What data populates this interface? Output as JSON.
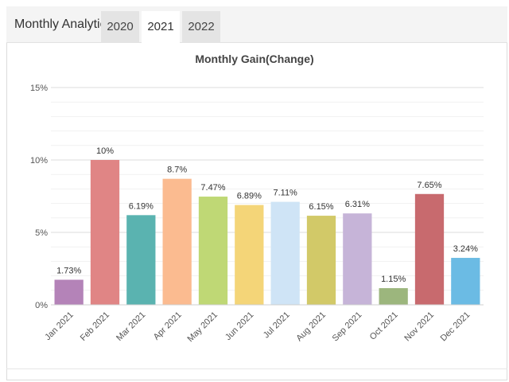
{
  "header": {
    "title": "Monthly Analytics",
    "tabs": [
      {
        "label": "2020",
        "active": false
      },
      {
        "label": "2021",
        "active": true
      },
      {
        "label": "2022",
        "active": false
      }
    ]
  },
  "chart_data": {
    "type": "bar",
    "title": "Monthly Gain(Change)",
    "xlabel": "",
    "ylabel": "",
    "ylim": [
      0,
      15
    ],
    "y_ticks": [
      0,
      5,
      10,
      15
    ],
    "y_tick_labels": [
      "0%",
      "5%",
      "10%",
      "15%"
    ],
    "grid": true,
    "categories": [
      "Jan 2021",
      "Feb 2021",
      "Mar 2021",
      "Apr 2021",
      "May 2021",
      "Jun 2021",
      "Jul 2021",
      "Aug 2021",
      "Sep 2021",
      "Oct 2021",
      "Nov 2021",
      "Dec 2021"
    ],
    "values": [
      1.73,
      10,
      6.19,
      8.7,
      7.47,
      6.89,
      7.11,
      6.15,
      6.31,
      1.15,
      7.65,
      3.24
    ],
    "data_labels": [
      "1.73%",
      "10%",
      "6.19%",
      "8.7%",
      "7.47%",
      "6.89%",
      "7.11%",
      "6.15%",
      "6.31%",
      "1.15%",
      "7.65%",
      "3.24%"
    ],
    "colors": [
      "#b483b8",
      "#e08585",
      "#5ab3b0",
      "#fbbb90",
      "#bfd875",
      "#f4d578",
      "#cfe4f6",
      "#d2c968",
      "#c6b4d8",
      "#9cb67d",
      "#c86a6e",
      "#6bbbe4"
    ]
  }
}
